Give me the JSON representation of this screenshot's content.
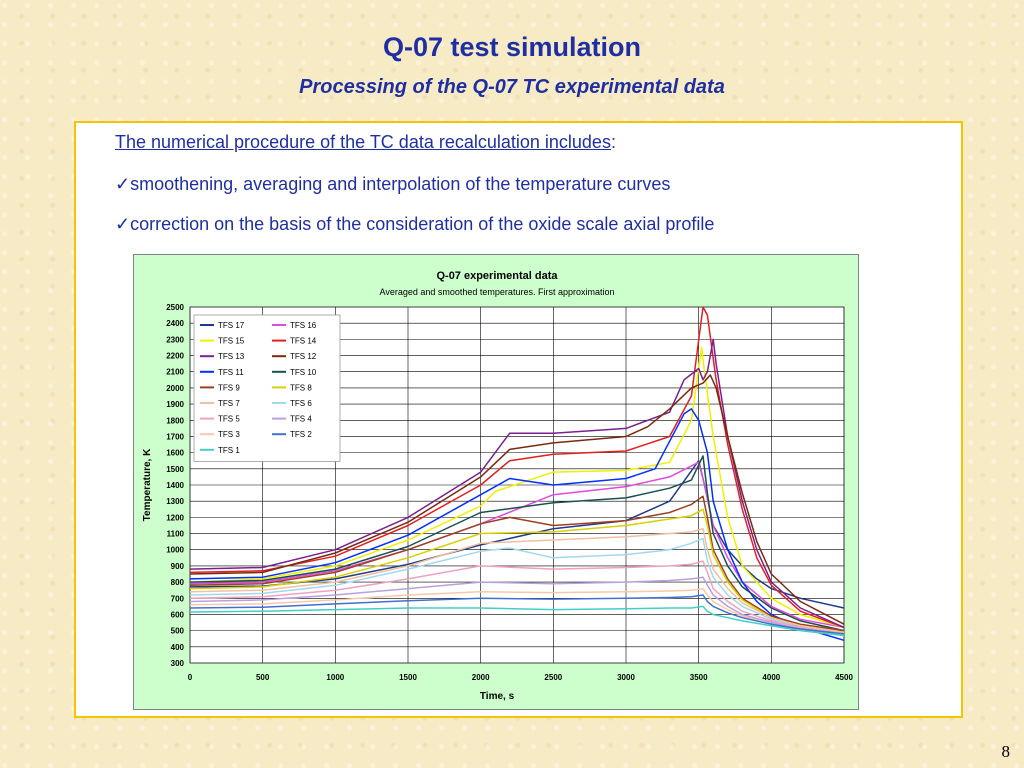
{
  "slide": {
    "title": "Q-07 test simulation",
    "subtitle": "Processing of the Q-07 TC experimental data",
    "intro_text": "The numerical procedure of the TC data recalculation includes",
    "intro_colon": ":",
    "bullets": [
      "smoothening, averaging and interpolation of the temperature curves",
      "correction on the basis of the consideration of the oxide scale axial profile"
    ],
    "check_symbol": "✓",
    "page_number": "8"
  },
  "chart_data": {
    "type": "line",
    "title": "Q-07 experimental data",
    "subtitle": "Averaged and smoothed temperatures. First approximation",
    "xlabel": "Time, s",
    "ylabel": "Temperature, K",
    "xlim": [
      0,
      4500
    ],
    "ylim": [
      300,
      2500
    ],
    "xticks": [
      0,
      500,
      1000,
      1500,
      2000,
      2500,
      3000,
      3500,
      4000,
      4500
    ],
    "yticks": [
      300,
      400,
      500,
      600,
      700,
      800,
      900,
      1000,
      1100,
      1200,
      1300,
      1400,
      1500,
      1600,
      1700,
      1800,
      1900,
      2000,
      2100,
      2200,
      2300,
      2400,
      2500
    ],
    "grid": true,
    "legend_position": "top-left",
    "series": [
      {
        "name": "TFS 17",
        "color": "#1f3a8c",
        "x": [
          0,
          500,
          1000,
          1500,
          2000,
          2500,
          3000,
          3300,
          3500,
          3540,
          3600,
          3700,
          3800,
          3900,
          4000,
          4200,
          4500
        ],
        "y": [
          770,
          775,
          820,
          910,
          1030,
          1130,
          1180,
          1300,
          1550,
          1400,
          1150,
          1000,
          900,
          820,
          760,
          700,
          640
        ]
      },
      {
        "name": "TFS 16",
        "color": "#e04ae0",
        "x": [
          0,
          500,
          1000,
          1500,
          2000,
          2500,
          3000,
          3300,
          3500,
          3540,
          3600,
          3700,
          3800,
          4000,
          4200,
          4500
        ],
        "y": [
          790,
          800,
          870,
          1000,
          1160,
          1340,
          1390,
          1450,
          1540,
          1400,
          1150,
          950,
          800,
          650,
          570,
          520
        ]
      },
      {
        "name": "TFS 15",
        "color": "#f0f000",
        "x": [
          0,
          500,
          1000,
          1500,
          2000,
          2100,
          2500,
          3000,
          3300,
          3450,
          3520,
          3540,
          3600,
          3700,
          3800,
          4000,
          4200,
          4500
        ],
        "y": [
          800,
          820,
          900,
          1060,
          1270,
          1360,
          1480,
          1490,
          1540,
          1800,
          2250,
          2100,
          1700,
          1200,
          900,
          700,
          600,
          520
        ]
      },
      {
        "name": "TFS 14",
        "color": "#e02020",
        "x": [
          0,
          500,
          1000,
          1500,
          2000,
          2200,
          2500,
          3000,
          3300,
          3450,
          3530,
          3560,
          3620,
          3700,
          3800,
          3900,
          4000,
          4200,
          4500
        ],
        "y": [
          860,
          870,
          960,
          1150,
          1400,
          1550,
          1590,
          1610,
          1700,
          1950,
          2500,
          2450,
          2050,
          1650,
          1250,
          950,
          780,
          620,
          520
        ]
      },
      {
        "name": "TFS 13",
        "color": "#7a2090",
        "x": [
          0,
          500,
          1000,
          1500,
          2000,
          2200,
          2500,
          3000,
          3300,
          3400,
          3500,
          3530,
          3560,
          3600,
          3620,
          3700,
          3800,
          3900,
          4000,
          4200,
          4500
        ],
        "y": [
          880,
          890,
          1000,
          1200,
          1480,
          1720,
          1720,
          1750,
          1850,
          2050,
          2120,
          2050,
          2100,
          2300,
          2150,
          1700,
          1300,
          1000,
          800,
          640,
          520
        ]
      },
      {
        "name": "TFS 12",
        "color": "#7a2a10",
        "x": [
          0,
          500,
          1000,
          1500,
          2000,
          2200,
          2500,
          3000,
          3150,
          3300,
          3450,
          3530,
          3580,
          3620,
          3700,
          3800,
          3900,
          4000,
          4200,
          4500
        ],
        "y": [
          850,
          860,
          980,
          1170,
          1450,
          1620,
          1660,
          1700,
          1760,
          1870,
          2000,
          2030,
          2080,
          2000,
          1700,
          1350,
          1050,
          850,
          680,
          540
        ]
      },
      {
        "name": "TFS 11",
        "color": "#0030ff",
        "x": [
          0,
          500,
          1000,
          1500,
          2000,
          2200,
          2500,
          3000,
          3200,
          3400,
          3450,
          3500,
          3560,
          3600,
          3700,
          3800,
          3900,
          4000,
          4200,
          4500
        ],
        "y": [
          820,
          830,
          920,
          1090,
          1340,
          1440,
          1400,
          1440,
          1500,
          1840,
          1870,
          1800,
          1600,
          1300,
          1000,
          800,
          680,
          600,
          520,
          440
        ]
      },
      {
        "name": "TFS 10",
        "color": "#1a5050",
        "x": [
          0,
          500,
          1000,
          1500,
          2000,
          2500,
          3000,
          3300,
          3450,
          3530,
          3560,
          3600,
          3700,
          3800,
          4000,
          4200,
          4500
        ],
        "y": [
          800,
          810,
          880,
          1020,
          1230,
          1290,
          1320,
          1380,
          1430,
          1580,
          1350,
          1100,
          900,
          770,
          640,
          560,
          500
        ]
      },
      {
        "name": "TFS 9",
        "color": "#a04020",
        "x": [
          0,
          500,
          1000,
          1500,
          2000,
          2200,
          2500,
          3000,
          3300,
          3450,
          3530,
          3560,
          3600,
          3700,
          3800,
          4000,
          4200,
          4500
        ],
        "y": [
          780,
          790,
          860,
          1000,
          1160,
          1200,
          1150,
          1180,
          1230,
          1280,
          1330,
          1200,
          1000,
          820,
          700,
          590,
          540,
          500
        ]
      },
      {
        "name": "TFS 8",
        "color": "#d8d000",
        "x": [
          0,
          500,
          1000,
          1500,
          2000,
          2500,
          3000,
          3300,
          3450,
          3530,
          3560,
          3600,
          3700,
          3800,
          4000,
          4200,
          4500
        ],
        "y": [
          760,
          770,
          830,
          950,
          1100,
          1110,
          1150,
          1190,
          1210,
          1250,
          1150,
          970,
          800,
          690,
          580,
          530,
          490
        ]
      },
      {
        "name": "TFS 7",
        "color": "#f0c0a0",
        "x": [
          0,
          500,
          1000,
          1500,
          2000,
          2500,
          3000,
          3300,
          3450,
          3530,
          3560,
          3600,
          3700,
          3800,
          4000,
          4200,
          4500
        ],
        "y": [
          740,
          750,
          800,
          900,
          1040,
          1060,
          1080,
          1100,
          1110,
          1130,
          1000,
          880,
          760,
          670,
          580,
          530,
          490
        ]
      },
      {
        "name": "TFS 6",
        "color": "#a0d8f0",
        "x": [
          0,
          500,
          1000,
          1500,
          2000,
          2200,
          2500,
          3000,
          3300,
          3450,
          3530,
          3560,
          3600,
          3700,
          3800,
          4000,
          4200,
          4500
        ],
        "y": [
          720,
          730,
          780,
          880,
          990,
          1010,
          950,
          970,
          1000,
          1040,
          1070,
          930,
          830,
          720,
          650,
          570,
          520,
          480
        ]
      },
      {
        "name": "TFS 5",
        "color": "#f0a0c0",
        "x": [
          0,
          500,
          1000,
          1500,
          2000,
          2500,
          3000,
          3300,
          3450,
          3530,
          3560,
          3600,
          3700,
          3800,
          4000,
          4200,
          4500
        ],
        "y": [
          700,
          710,
          750,
          820,
          900,
          880,
          890,
          900,
          910,
          930,
          860,
          760,
          680,
          620,
          560,
          520,
          480
        ]
      },
      {
        "name": "TFS 4",
        "color": "#b8a0e0",
        "x": [
          0,
          500,
          1000,
          1500,
          2000,
          2500,
          3000,
          3300,
          3450,
          3530,
          3560,
          3600,
          3700,
          3800,
          4000,
          4200,
          4500
        ],
        "y": [
          680,
          690,
          720,
          760,
          800,
          790,
          800,
          810,
          820,
          830,
          780,
          720,
          650,
          600,
          550,
          510,
          470
        ]
      },
      {
        "name": "TFS 3",
        "color": "#f8c8a8",
        "x": [
          0,
          500,
          1000,
          1500,
          2000,
          2500,
          3000,
          3300,
          3450,
          3530,
          3560,
          3600,
          3700,
          3800,
          4000,
          4200,
          4500
        ],
        "y": [
          660,
          665,
          690,
          720,
          740,
          735,
          740,
          745,
          750,
          760,
          720,
          680,
          630,
          590,
          540,
          500,
          470
        ]
      },
      {
        "name": "TFS 2",
        "color": "#4070d0",
        "x": [
          0,
          500,
          1000,
          1500,
          2000,
          2500,
          3000,
          3300,
          3450,
          3530,
          3560,
          3600,
          3700,
          3800,
          4000,
          4200,
          4500
        ],
        "y": [
          640,
          645,
          665,
          685,
          700,
          695,
          700,
          705,
          710,
          720,
          680,
          650,
          610,
          580,
          540,
          510,
          480
        ]
      },
      {
        "name": "TFS 1",
        "color": "#40d0c8",
        "x": [
          0,
          500,
          1000,
          1500,
          2000,
          2500,
          3000,
          3300,
          3450,
          3530,
          3560,
          3600,
          3700,
          3800,
          4000,
          4200,
          4500
        ],
        "y": [
          615,
          620,
          630,
          640,
          640,
          630,
          635,
          640,
          640,
          650,
          620,
          600,
          580,
          560,
          530,
          500,
          470
        ]
      }
    ]
  }
}
